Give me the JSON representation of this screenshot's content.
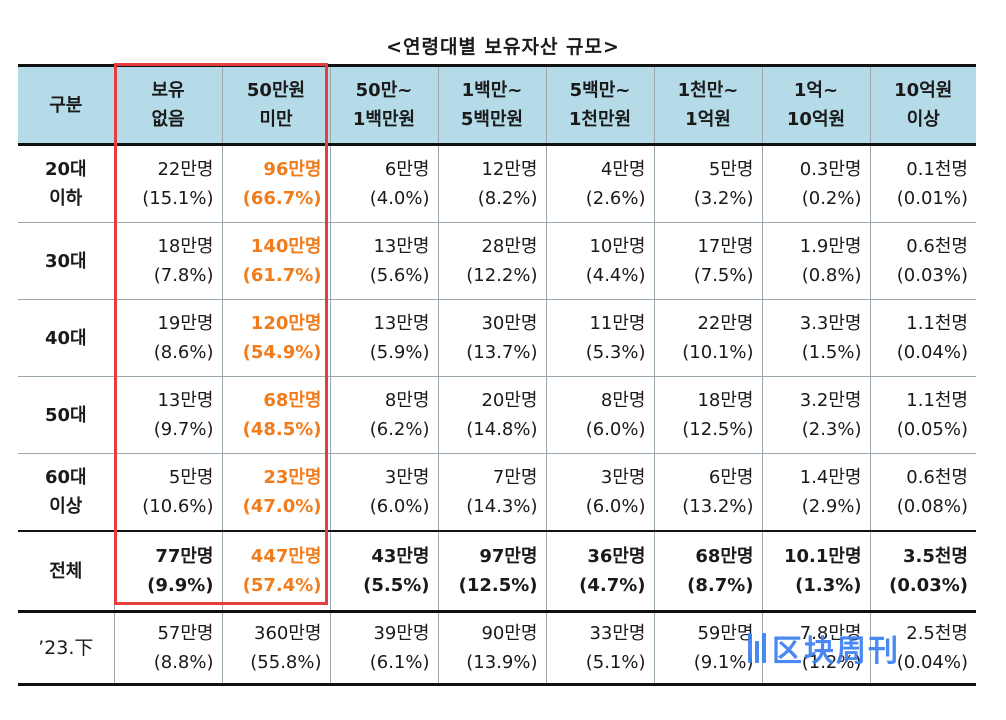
{
  "title": "<연령대별 보유자산 규모>",
  "header": {
    "category": "구분",
    "columns": [
      [
        "보유",
        "없음"
      ],
      [
        "50만원",
        "미만"
      ],
      [
        "50만~",
        "1백만원"
      ],
      [
        "1백만~",
        "5백만원"
      ],
      [
        "5백만~",
        "1천만원"
      ],
      [
        "1천만~",
        "1억원"
      ],
      [
        "1억~",
        "10억원"
      ],
      [
        "10억원",
        "이상"
      ]
    ]
  },
  "rows": [
    {
      "label": [
        "20대",
        "이하"
      ],
      "cells": [
        [
          "22만명",
          "(15.1%)"
        ],
        [
          "96만명",
          "(66.7%)"
        ],
        [
          "6만명",
          "(4.0%)"
        ],
        [
          "12만명",
          "(8.2%)"
        ],
        [
          "4만명",
          "(2.6%)"
        ],
        [
          "5만명",
          "(3.2%)"
        ],
        [
          "0.3만명",
          "(0.2%)"
        ],
        [
          "0.1천명",
          "(0.01%)"
        ]
      ]
    },
    {
      "label": [
        "30대"
      ],
      "cells": [
        [
          "18만명",
          "(7.8%)"
        ],
        [
          "140만명",
          "(61.7%)"
        ],
        [
          "13만명",
          "(5.6%)"
        ],
        [
          "28만명",
          "(12.2%)"
        ],
        [
          "10만명",
          "(4.4%)"
        ],
        [
          "17만명",
          "(7.5%)"
        ],
        [
          "1.9만명",
          "(0.8%)"
        ],
        [
          "0.6천명",
          "(0.03%)"
        ]
      ]
    },
    {
      "label": [
        "40대"
      ],
      "cells": [
        [
          "19만명",
          "(8.6%)"
        ],
        [
          "120만명",
          "(54.9%)"
        ],
        [
          "13만명",
          "(5.9%)"
        ],
        [
          "30만명",
          "(13.7%)"
        ],
        [
          "11만명",
          "(5.3%)"
        ],
        [
          "22만명",
          "(10.1%)"
        ],
        [
          "3.3만명",
          "(1.5%)"
        ],
        [
          "1.1천명",
          "(0.04%)"
        ]
      ]
    },
    {
      "label": [
        "50대"
      ],
      "cells": [
        [
          "13만명",
          "(9.7%)"
        ],
        [
          "68만명",
          "(48.5%)"
        ],
        [
          "8만명",
          "(6.2%)"
        ],
        [
          "20만명",
          "(14.8%)"
        ],
        [
          "8만명",
          "(6.0%)"
        ],
        [
          "18만명",
          "(12.5%)"
        ],
        [
          "3.2만명",
          "(2.3%)"
        ],
        [
          "1.1천명",
          "(0.05%)"
        ]
      ]
    },
    {
      "label": [
        "60대",
        "이상"
      ],
      "cells": [
        [
          "5만명",
          "(10.6%)"
        ],
        [
          "23만명",
          "(47.0%)"
        ],
        [
          "3만명",
          "(6.0%)"
        ],
        [
          "7만명",
          "(14.3%)"
        ],
        [
          "3만명",
          "(6.0%)"
        ],
        [
          "6만명",
          "(13.2%)"
        ],
        [
          "1.4만명",
          "(2.9%)"
        ],
        [
          "0.6천명",
          "(0.08%)"
        ]
      ]
    }
  ],
  "total": {
    "label": [
      "전체"
    ],
    "cells": [
      [
        "77만명",
        "(9.9%)"
      ],
      [
        "447만명",
        "(57.4%)"
      ],
      [
        "43만명",
        "(5.5%)"
      ],
      [
        "97만명",
        "(12.5%)"
      ],
      [
        "36만명",
        "(4.7%)"
      ],
      [
        "68만명",
        "(8.7%)"
      ],
      [
        "10.1만명",
        "(1.3%)"
      ],
      [
        "3.5천명",
        "(0.03%)"
      ]
    ]
  },
  "previous": {
    "label": [
      "’23.下"
    ],
    "cells": [
      [
        "57만명",
        "(8.8%)"
      ],
      [
        "360만명",
        "(55.8%)"
      ],
      [
        "39만명",
        "(6.1%)"
      ],
      [
        "90만명",
        "(13.9%)"
      ],
      [
        "33만명",
        "(5.1%)"
      ],
      [
        "59만명",
        "(9.1%)"
      ],
      [
        "7.8만명",
        "(1.2%)"
      ],
      [
        "2.5천명",
        "(0.04%)"
      ]
    ]
  },
  "highlight_column_index": 1,
  "colors": {
    "header_bg": "#b5dbe9",
    "highlight_text": "#f07c1c",
    "highlight_box": "#e53e3e",
    "watermark": "#3a7ff0"
  },
  "watermark": {
    "text": "区块周刊",
    "icon": "bars-logo-icon"
  }
}
